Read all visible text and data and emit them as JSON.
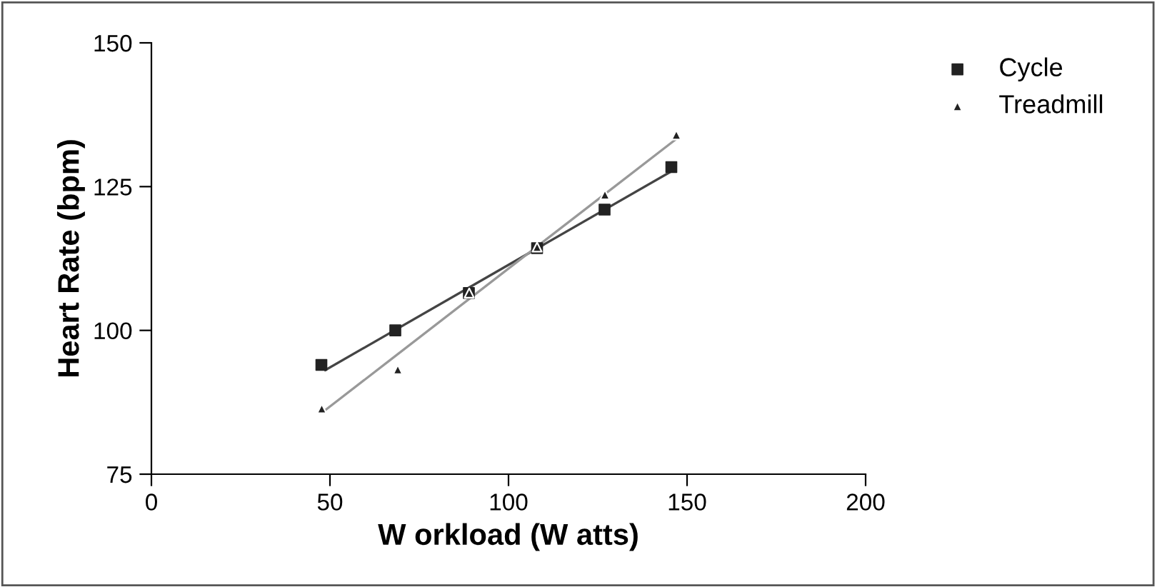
{
  "chart_data": {
    "type": "scatter",
    "xlabel": "W orkload (W atts)",
    "ylabel": "Heart Rate (bpm)",
    "xlim": [
      0,
      200
    ],
    "xticks": [
      0,
      50,
      100,
      150,
      200
    ],
    "ylim": [
      75,
      150
    ],
    "yticks": [
      75,
      100,
      125,
      150
    ],
    "grid": false,
    "legend": "top right",
    "series": [
      {
        "name": "Cycle",
        "marker": "square",
        "color": "#222222",
        "x": [
          47.6,
          68.3,
          88.9,
          108,
          126.9,
          145.6
        ],
        "values": [
          94,
          100,
          106.5,
          114.3,
          121,
          128.4
        ]
      },
      {
        "name": "Treadmill",
        "marker": "triangle",
        "color": "#222222",
        "x": [
          47.7,
          69,
          89,
          108,
          127,
          147
        ],
        "values": [
          86.4,
          93.2,
          106.5,
          114.5,
          123.6,
          134
        ]
      },
      {
        "type": "line",
        "marker": "none",
        "color": "#444444",
        "x": [
          48.7,
          146
        ],
        "values": [
          93.1,
          127.8
        ]
      },
      {
        "type": "line",
        "marker": "none",
        "color": "#999999",
        "x": [
          48,
          147
        ],
        "values": [
          85.8,
          133.3
        ]
      }
    ]
  }
}
